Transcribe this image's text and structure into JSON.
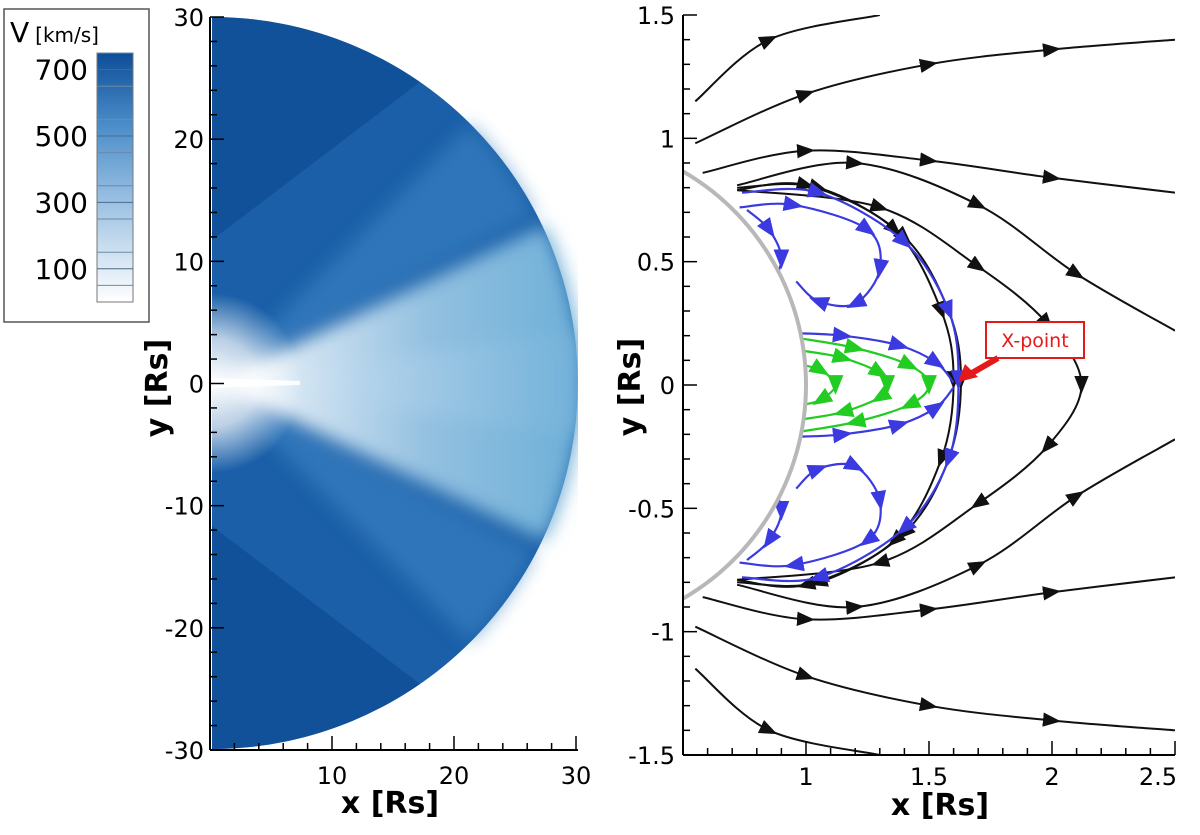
{
  "colorbar": {
    "title_main": "V",
    "title_unit": "[km/s]",
    "ticks": [
      700,
      500,
      300,
      100
    ],
    "range": [
      0,
      750
    ],
    "color_low": "#ffffff",
    "color_high": "#0d4e98"
  },
  "chart_data": [
    {
      "type": "heatmap",
      "quantity": "V",
      "xlabel": "x [Rs]",
      "ylabel": "y [Rs]",
      "xlim": [
        0,
        30
      ],
      "ylim": [
        -30,
        30
      ],
      "xticks": [
        10,
        20,
        30
      ],
      "yticks": [
        30,
        20,
        10,
        0,
        -10,
        -20,
        -30
      ],
      "domain": "half-disk x>0, r<=30",
      "streamer_belt": {
        "center_y": 0,
        "slow_wind_kms": 300
      },
      "fast_wind_kms": 700,
      "colorbar_position": "top-left"
    },
    {
      "type": "line",
      "xlabel": "x [Rs]",
      "ylabel": "y [Rs]",
      "xlim": [
        0.5,
        2.5
      ],
      "ylim": [
        -1.5,
        1.5
      ],
      "xticks": [
        "1",
        "1.5",
        "2",
        "2.5"
      ],
      "yticks": [
        "1.5",
        "1",
        "0.5",
        "0",
        "-0.5",
        "-1",
        "-1.5"
      ],
      "solar_surface_radius": 1,
      "annotation": {
        "text": "X-point",
        "x": 1.64,
        "y": 0
      },
      "series": [
        {
          "group": "open",
          "color": "#111111",
          "points": [
            [
              0.55,
              1.15
            ],
            [
              0.85,
              1.4
            ],
            [
              1.3,
              1.5
            ]
          ]
        },
        {
          "group": "open",
          "color": "#111111",
          "points": [
            [
              0.55,
              0.98
            ],
            [
              1.0,
              1.18
            ],
            [
              1.5,
              1.3
            ],
            [
              2.0,
              1.36
            ],
            [
              2.5,
              1.4
            ]
          ]
        },
        {
          "group": "open",
          "color": "#111111",
          "points": [
            [
              0.58,
              0.86
            ],
            [
              1.0,
              0.95
            ],
            [
              1.5,
              0.91
            ],
            [
              2.0,
              0.84
            ],
            [
              2.5,
              0.78
            ]
          ]
        },
        {
          "group": "open",
          "color": "#111111",
          "points": [
            [
              0.72,
              0.81
            ],
            [
              1.2,
              0.9
            ],
            [
              1.7,
              0.73
            ],
            [
              2.1,
              0.45
            ],
            [
              2.5,
              0.22
            ]
          ]
        },
        {
          "group": "open",
          "color": "#111111",
          "points": [
            [
              0.72,
              0.79
            ],
            [
              1.3,
              0.72
            ],
            [
              1.7,
              0.48
            ],
            [
              1.98,
              0.25
            ],
            [
              2.12,
              0.0
            ],
            [
              1.98,
              -0.25
            ],
            [
              1.7,
              -0.48
            ],
            [
              1.3,
              -0.72
            ],
            [
              0.72,
              -0.79
            ]
          ]
        },
        {
          "group": "open",
          "color": "#111111",
          "points": [
            [
              0.72,
              -0.81
            ],
            [
              1.2,
              -0.9
            ],
            [
              1.7,
              -0.73
            ],
            [
              2.1,
              -0.45
            ],
            [
              2.5,
              -0.22
            ]
          ]
        },
        {
          "group": "open",
          "color": "#111111",
          "points": [
            [
              0.58,
              -0.86
            ],
            [
              1.0,
              -0.95
            ],
            [
              1.5,
              -0.91
            ],
            [
              2.0,
              -0.84
            ],
            [
              2.5,
              -0.78
            ]
          ]
        },
        {
          "group": "open",
          "color": "#111111",
          "points": [
            [
              0.55,
              -0.98
            ],
            [
              1.0,
              -1.18
            ],
            [
              1.5,
              -1.3
            ],
            [
              2.0,
              -1.36
            ],
            [
              2.5,
              -1.4
            ]
          ]
        },
        {
          "group": "open",
          "color": "#111111",
          "points": [
            [
              0.55,
              -1.15
            ],
            [
              0.85,
              -1.4
            ],
            [
              1.3,
              -1.5
            ]
          ]
        },
        {
          "group": "closed",
          "color": "#111111",
          "points": [
            [
              0.72,
              0.8
            ],
            [
              1.05,
              0.8
            ],
            [
              1.4,
              0.6
            ],
            [
              1.58,
              0.3
            ],
            [
              1.63,
              0.02
            ],
            [
              1.58,
              -0.3
            ],
            [
              1.4,
              -0.6
            ],
            [
              1.05,
              -0.8
            ],
            [
              0.72,
              -0.8
            ]
          ]
        },
        {
          "group": "closed",
          "color": "#111111",
          "points": [
            [
              0.72,
              0.79
            ],
            [
              1.0,
              0.81
            ],
            [
              1.36,
              0.63
            ],
            [
              1.55,
              0.3
            ],
            [
              1.6,
              0.02
            ],
            [
              1.55,
              -0.3
            ],
            [
              1.36,
              -0.63
            ],
            [
              1.0,
              -0.81
            ],
            [
              0.72,
              -0.79
            ]
          ]
        },
        {
          "group": "closed",
          "color": "#3a3ae0",
          "points": [
            [
              0.74,
              0.78
            ],
            [
              1.05,
              0.78
            ],
            [
              1.4,
              0.58
            ],
            [
              1.58,
              0.3
            ],
            [
              1.62,
              0.02
            ],
            [
              1.58,
              -0.3
            ],
            [
              1.4,
              -0.58
            ],
            [
              1.05,
              -0.78
            ],
            [
              0.74,
              -0.78
            ]
          ]
        },
        {
          "group": "closed",
          "color": "#3a3ae0",
          "points": [
            [
              0.73,
              0.72
            ],
            [
              0.95,
              0.73
            ],
            [
              1.25,
              0.63
            ],
            [
              1.3,
              0.47
            ],
            [
              1.2,
              0.33
            ],
            [
              1.05,
              0.34
            ],
            [
              0.96,
              0.42
            ]
          ]
        },
        {
          "group": "closed",
          "color": "#3a3ae0",
          "points": [
            [
              0.76,
              0.71
            ],
            [
              0.85,
              0.63
            ],
            [
              0.9,
              0.51
            ],
            [
              0.85,
              0.39
            ],
            [
              0.8,
              0.34
            ]
          ]
        },
        {
          "group": "closed",
          "color": "#3a3ae0",
          "points": [
            [
              0.96,
              0.21
            ],
            [
              1.15,
              0.2
            ],
            [
              1.38,
              0.16
            ],
            [
              1.53,
              0.09
            ],
            [
              1.6,
              0.01
            ]
          ]
        },
        {
          "group": "closed",
          "color": "#3a3ae0",
          "points": [
            [
              0.96,
              -0.21
            ],
            [
              1.15,
              -0.2
            ],
            [
              1.38,
              -0.16
            ],
            [
              1.53,
              -0.09
            ],
            [
              1.6,
              -0.01
            ]
          ]
        },
        {
          "group": "closed",
          "color": "#3a3ae0",
          "points": [
            [
              0.96,
              -0.42
            ],
            [
              1.05,
              -0.34
            ],
            [
              1.2,
              -0.33
            ],
            [
              1.3,
              -0.47
            ],
            [
              1.25,
              -0.63
            ],
            [
              0.95,
              -0.73
            ],
            [
              0.73,
              -0.72
            ]
          ]
        },
        {
          "group": "closed",
          "color": "#3a3ae0",
          "points": [
            [
              0.8,
              -0.34
            ],
            [
              0.85,
              -0.39
            ],
            [
              0.9,
              -0.51
            ],
            [
              0.85,
              -0.63
            ],
            [
              0.76,
              -0.71
            ]
          ]
        },
        {
          "group": "closed",
          "color": "#22cc22",
          "points": [
            [
              0.97,
              0.19
            ],
            [
              1.2,
              0.15
            ],
            [
              1.42,
              0.08
            ],
            [
              1.5,
              0.0
            ],
            [
              1.42,
              -0.08
            ],
            [
              1.2,
              -0.15
            ],
            [
              0.97,
              -0.19
            ]
          ]
        },
        {
          "group": "closed",
          "color": "#22cc22",
          "points": [
            [
              0.98,
              0.14
            ],
            [
              1.15,
              0.11
            ],
            [
              1.3,
              0.05
            ],
            [
              1.33,
              0.0
            ],
            [
              1.3,
              -0.05
            ],
            [
              1.15,
              -0.11
            ],
            [
              0.98,
              -0.14
            ]
          ]
        },
        {
          "group": "closed",
          "color": "#22cc22",
          "points": [
            [
              0.99,
              0.08
            ],
            [
              1.06,
              0.06
            ],
            [
              1.12,
              0.0
            ],
            [
              1.06,
              -0.06
            ],
            [
              0.99,
              -0.08
            ]
          ]
        }
      ]
    }
  ]
}
